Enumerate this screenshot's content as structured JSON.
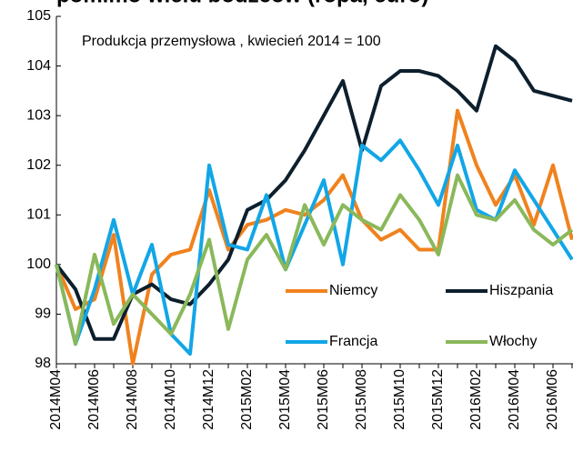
{
  "chart_data": {
    "type": "line",
    "title": "pomimo wielu bodźców (ropa, euro)",
    "annotation": "Produkcja przemysłowa , kwiecień 2014 = 100",
    "categories": [
      "2014M04",
      null,
      "2014M06",
      null,
      "2014M08",
      null,
      "2014M10",
      null,
      "2014M12",
      null,
      "2015M02",
      null,
      "2015M04",
      null,
      "2015M06",
      null,
      "2015M08",
      null,
      "2015M10",
      null,
      "2015M12",
      null,
      "2016M02",
      null,
      "2016M04",
      null,
      "2016M06",
      null
    ],
    "series": [
      {
        "name": "Niemcy",
        "color": "#f0821e",
        "values": [
          100,
          99.1,
          99.3,
          100.6,
          98.0,
          99.8,
          100.2,
          100.3,
          101.5,
          100.3,
          100.8,
          100.9,
          101.1,
          101.0,
          101.3,
          101.8,
          100.9,
          100.5,
          100.7,
          100.3,
          100.3,
          103.1,
          102.0,
          101.2,
          101.8,
          100.8,
          102.0,
          100.5
        ]
      },
      {
        "name": "Hiszpania",
        "color": "#0d1f2d",
        "values": [
          100,
          99.5,
          98.5,
          98.5,
          99.4,
          99.6,
          99.3,
          99.2,
          99.6,
          100.1,
          101.1,
          101.3,
          101.7,
          102.3,
          103.0,
          103.7,
          102.3,
          103.6,
          103.9,
          103.9,
          103.8,
          103.5,
          103.1,
          104.4,
          104.1,
          103.5,
          103.4,
          103.3
        ]
      },
      {
        "name": "Francja",
        "color": "#12a6e6",
        "values": [
          100,
          98.4,
          99.5,
          100.9,
          99.4,
          100.4,
          98.6,
          98.2,
          102.0,
          100.4,
          100.3,
          101.4,
          99.9,
          100.8,
          101.7,
          100.0,
          102.4,
          102.1,
          102.5,
          101.9,
          101.2,
          102.4,
          101.1,
          100.9,
          101.9,
          101.3,
          100.7,
          100.1
        ]
      },
      {
        "name": "Włochy",
        "color": "#8ab85a",
        "values": [
          100,
          98.4,
          100.2,
          98.8,
          99.4,
          99.0,
          98.6,
          99.4,
          100.5,
          98.7,
          100.1,
          100.6,
          99.9,
          101.2,
          100.4,
          101.2,
          100.9,
          100.7,
          101.4,
          100.9,
          100.2,
          101.8,
          101.0,
          100.9,
          101.3,
          100.7,
          100.4,
          100.7
        ]
      }
    ],
    "ylim": [
      98,
      105
    ],
    "yticks": [
      98,
      99,
      100,
      101,
      102,
      103,
      104,
      105
    ],
    "grid": false
  }
}
